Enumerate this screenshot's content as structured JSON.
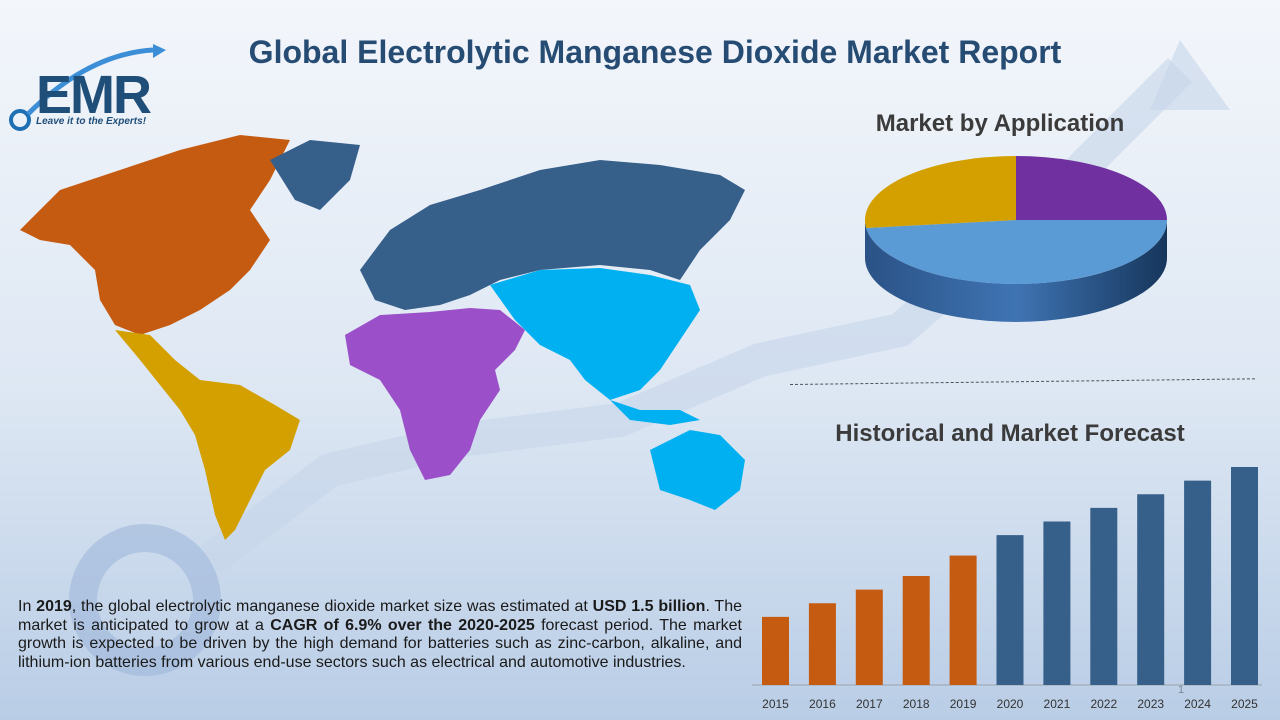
{
  "title": "Global Electrolytic Manganese Dioxide Market Report",
  "logo": {
    "text": "EMR",
    "tagline": "Leave it to the Experts!"
  },
  "colors": {
    "title": "#264c73",
    "north_america": "#c55a11",
    "latin_america": "#d4a000",
    "europe_russia": "#365f8a",
    "africa_me": "#9b4fc9",
    "asia_pacific": "#00b0f0",
    "historical": "#c55a11",
    "forecast": "#365f8a"
  },
  "pie_section": {
    "title": "Market by Application"
  },
  "bar_section": {
    "title": "Historical and Market Forecast"
  },
  "page_number": "1",
  "summary": {
    "p1": "In ",
    "b1": "2019",
    "p2": ", the global electrolytic manganese dioxide market size was estimated at ",
    "b2": "USD 1.5 billion",
    "p3": ". The market is anticipated to grow at a ",
    "b3": "CAGR of 6.9% over the 2020-2025",
    "p4": " forecast period. The market growth is expected to be driven by the high demand for batteries such as zinc-carbon, alkaline, and lithium-ion batteries from various end-use sectors such as electrical and automotive industries."
  },
  "chart_data": [
    {
      "type": "pie",
      "title": "Market by Application",
      "slices": [
        {
          "value": 25,
          "color": "#7030a0"
        },
        {
          "value": 48,
          "color": "#5b9bd5"
        },
        {
          "value": 27,
          "color": "#d4a000"
        }
      ]
    },
    {
      "type": "bar",
      "title": "Historical and Market Forecast",
      "categories": [
        "2015",
        "2016",
        "2017",
        "2018",
        "2019",
        "2020",
        "2021",
        "2022",
        "2023",
        "2024",
        "2025"
      ],
      "values": [
        10,
        12,
        14,
        16,
        19,
        22,
        24,
        26,
        28,
        30,
        32
      ],
      "historical_count": 5
    }
  ]
}
